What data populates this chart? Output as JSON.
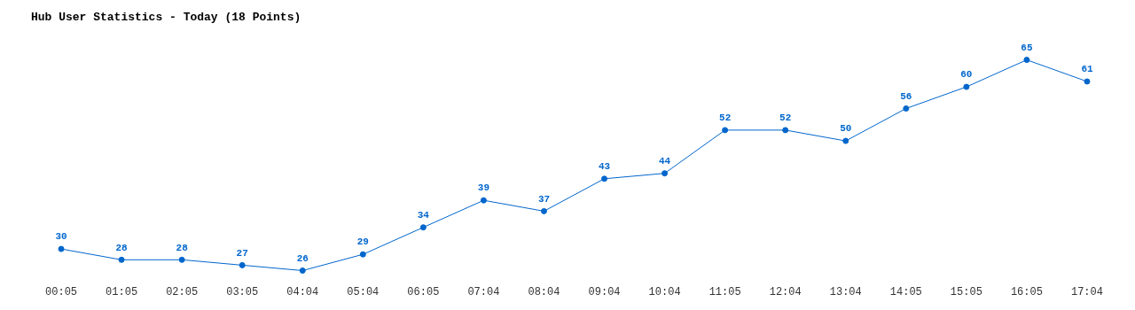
{
  "chart_data": {
    "type": "line",
    "title": "Hub User Statistics - Today (18 Points)",
    "categories": [
      "00:05",
      "01:05",
      "02:05",
      "03:05",
      "04:04",
      "05:04",
      "06:05",
      "07:04",
      "08:04",
      "09:04",
      "10:04",
      "11:05",
      "12:04",
      "13:04",
      "14:05",
      "15:05",
      "16:05",
      "17:04"
    ],
    "series": [
      {
        "color": "#0066cc",
        "values": [
          30,
          28,
          28,
          27,
          26,
          29,
          34,
          39,
          37,
          43,
          44,
          52,
          52,
          50,
          56,
          60,
          65,
          61
        ]
      }
    ],
    "data_labels": true,
    "grid": false,
    "legend": false,
    "marker": "circle",
    "line_style": "solid"
  }
}
